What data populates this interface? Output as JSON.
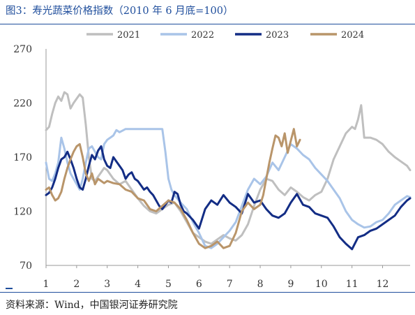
{
  "title": "图3：寿光蔬菜价格指数（2010 年 6 月底=100）",
  "source": "资料来源：Wind，中国银河证券研究院",
  "chart_data": {
    "type": "line",
    "x_label_ticks": [
      "1",
      "2",
      "3",
      "4",
      "5",
      "6",
      "7",
      "8",
      "9",
      "10",
      "11",
      "12"
    ],
    "xlim": [
      1,
      12.9
    ],
    "ylim": [
      70,
      270
    ],
    "y_ticks": [
      70,
      120,
      170,
      220,
      270
    ],
    "legend_position": "top",
    "grid": false,
    "series": [
      {
        "name": "2021",
        "color": "#bfbfbf",
        "x": [
          1.0,
          1.1,
          1.2,
          1.3,
          1.4,
          1.5,
          1.6,
          1.7,
          1.8,
          1.9,
          2.0,
          2.1,
          2.2,
          2.3,
          2.4,
          2.5,
          2.6,
          2.7,
          2.8,
          2.9,
          3.0,
          3.2,
          3.4,
          3.6,
          3.8,
          4.0,
          4.2,
          4.4,
          4.6,
          4.8,
          5.0,
          5.2,
          5.4,
          5.6,
          5.8,
          6.0,
          6.2,
          6.4,
          6.6,
          6.8,
          7.0,
          7.2,
          7.4,
          7.6,
          7.8,
          8.0,
          8.2,
          8.4,
          8.6,
          8.8,
          9.0,
          9.2,
          9.4,
          9.6,
          9.8,
          10.0,
          10.2,
          10.4,
          10.6,
          10.8,
          11.0,
          11.1,
          11.2,
          11.3,
          11.4,
          11.6,
          11.8,
          12.0,
          12.2,
          12.4,
          12.6,
          12.8,
          12.9
        ],
        "y": [
          195,
          198,
          210,
          220,
          226,
          222,
          230,
          228,
          215,
          220,
          224,
          228,
          225,
          200,
          170,
          150,
          148,
          152,
          156,
          160,
          158,
          150,
          145,
          148,
          140,
          132,
          125,
          120,
          118,
          122,
          126,
          128,
          120,
          110,
          100,
          96,
          92,
          90,
          94,
          98,
          95,
          93,
          98,
          108,
          125,
          140,
          150,
          148,
          140,
          135,
          142,
          138,
          133,
          130,
          135,
          138,
          150,
          168,
          180,
          192,
          198,
          196,
          205,
          218,
          188,
          188,
          186,
          182,
          175,
          170,
          166,
          162,
          158
        ]
      },
      {
        "name": "2022",
        "color": "#a9c4e8",
        "x": [
          1.0,
          1.1,
          1.2,
          1.3,
          1.4,
          1.5,
          1.6,
          1.7,
          1.8,
          1.9,
          2.0,
          2.1,
          2.2,
          2.3,
          2.4,
          2.5,
          2.6,
          2.7,
          2.8,
          2.9,
          3.0,
          3.1,
          3.2,
          3.3,
          3.4,
          3.6,
          3.8,
          4.0,
          4.2,
          4.4,
          4.6,
          4.8,
          4.9,
          5.0,
          5.1,
          5.2,
          5.4,
          5.6,
          5.8,
          6.0,
          6.2,
          6.4,
          6.6,
          6.8,
          7.0,
          7.2,
          7.4,
          7.6,
          7.8,
          8.0,
          8.2,
          8.4,
          8.6,
          8.8,
          9.0,
          9.2,
          9.4,
          9.6,
          9.8,
          10.0,
          10.2,
          10.4,
          10.6,
          10.8,
          11.0,
          11.2,
          11.4,
          11.6,
          11.8,
          12.0,
          12.2,
          12.4,
          12.6,
          12.8,
          12.9
        ],
        "y": [
          165,
          150,
          148,
          155,
          165,
          188,
          178,
          165,
          155,
          150,
          145,
          140,
          150,
          165,
          178,
          180,
          175,
          170,
          168,
          182,
          186,
          188,
          190,
          195,
          193,
          196,
          196,
          196,
          196,
          196,
          196,
          196,
          175,
          150,
          140,
          135,
          128,
          122,
          110,
          100,
          88,
          86,
          90,
          96,
          102,
          110,
          125,
          140,
          150,
          145,
          152,
          165,
          158,
          170,
          182,
          178,
          172,
          168,
          160,
          154,
          148,
          140,
          132,
          120,
          112,
          108,
          105,
          106,
          110,
          112,
          118,
          126,
          130,
          134,
          133
        ]
      },
      {
        "name": "2023",
        "color": "#132d85",
        "x": [
          1.0,
          1.1,
          1.2,
          1.3,
          1.4,
          1.5,
          1.6,
          1.7,
          1.8,
          1.9,
          2.0,
          2.1,
          2.2,
          2.3,
          2.4,
          2.5,
          2.6,
          2.7,
          2.8,
          2.9,
          3.0,
          3.1,
          3.2,
          3.3,
          3.4,
          3.5,
          3.6,
          3.7,
          3.8,
          3.9,
          4.0,
          4.1,
          4.2,
          4.3,
          4.4,
          4.5,
          4.6,
          4.7,
          4.8,
          4.9,
          5.0,
          5.1,
          5.2,
          5.3,
          5.4,
          5.5,
          5.6,
          5.8,
          6.0,
          6.2,
          6.4,
          6.6,
          6.8,
          7.0,
          7.2,
          7.4,
          7.6,
          7.8,
          8.0,
          8.2,
          8.4,
          8.6,
          8.8,
          9.0,
          9.2,
          9.4,
          9.6,
          9.8,
          10.0,
          10.2,
          10.4,
          10.6,
          10.8,
          11.0,
          11.2,
          11.4,
          11.6,
          11.8,
          12.0,
          12.2,
          12.4,
          12.6,
          12.8,
          12.9
        ],
        "y": [
          135,
          137,
          142,
          150,
          160,
          168,
          170,
          175,
          168,
          160,
          150,
          142,
          140,
          150,
          162,
          172,
          168,
          176,
          180,
          168,
          162,
          160,
          170,
          166,
          162,
          158,
          150,
          154,
          156,
          150,
          148,
          144,
          140,
          142,
          138,
          135,
          130,
          125,
          122,
          126,
          130,
          128,
          138,
          136,
          126,
          120,
          118,
          112,
          104,
          122,
          130,
          126,
          135,
          128,
          124,
          118,
          136,
          128,
          130,
          122,
          116,
          114,
          118,
          128,
          136,
          126,
          124,
          118,
          116,
          114,
          106,
          96,
          90,
          85,
          96,
          98,
          102,
          104,
          108,
          112,
          116,
          124,
          130,
          132
        ]
      },
      {
        "name": "2024",
        "color": "#b9956a",
        "x": [
          1.0,
          1.1,
          1.2,
          1.3,
          1.4,
          1.5,
          1.6,
          1.7,
          1.8,
          1.9,
          2.0,
          2.1,
          2.2,
          2.3,
          2.4,
          2.5,
          2.6,
          2.7,
          2.8,
          2.9,
          3.0,
          3.2,
          3.4,
          3.6,
          3.8,
          4.0,
          4.2,
          4.4,
          4.6,
          4.8,
          5.0,
          5.2,
          5.4,
          5.6,
          5.8,
          6.0,
          6.2,
          6.4,
          6.6,
          6.8,
          7.0,
          7.2,
          7.4,
          7.6,
          7.8,
          8.0,
          8.1,
          8.2,
          8.3,
          8.4,
          8.5,
          8.6,
          8.7,
          8.8,
          8.9,
          9.0,
          9.1,
          9.2,
          9.3
        ],
        "y": [
          140,
          142,
          135,
          130,
          132,
          138,
          150,
          160,
          168,
          175,
          180,
          182,
          170,
          155,
          148,
          155,
          145,
          150,
          148,
          146,
          148,
          146,
          145,
          140,
          138,
          132,
          130,
          122,
          120,
          125,
          130,
          128,
          122,
          112,
          100,
          90,
          86,
          88,
          92,
          86,
          88,
          100,
          120,
          128,
          122,
          126,
          135,
          150,
          165,
          178,
          190,
          188,
          180,
          192,
          174,
          185,
          196,
          180,
          186
        ]
      }
    ]
  }
}
